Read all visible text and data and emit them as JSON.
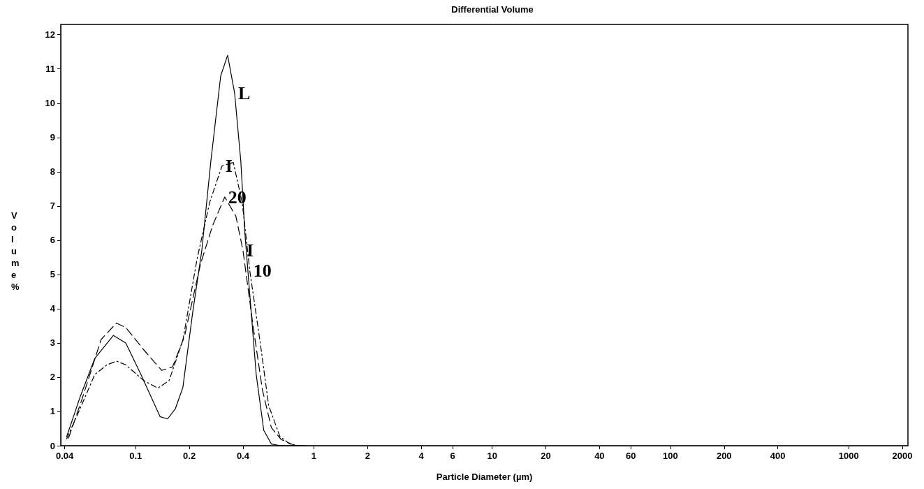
{
  "chart_data": {
    "type": "line",
    "title": "Differential Volume",
    "xlabel": "Particle Diameter (µm)",
    "ylabel": "Volume %",
    "log": "x",
    "grid": false,
    "marker": "none",
    "xlim": [
      0.038,
      2150
    ],
    "xticks": [
      0.04,
      0.1,
      0.2,
      0.4,
      1,
      2,
      4,
      6,
      10,
      20,
      40,
      60,
      100,
      200,
      400,
      1000,
      2000
    ],
    "ylim": [
      0,
      12.3
    ],
    "yticks": [
      0,
      1,
      2,
      3,
      4,
      5,
      6,
      7,
      8,
      9,
      10,
      11,
      12
    ],
    "series": [
      {
        "color": "#000000",
        "line_style": "solid",
        "x": [
          0.041,
          0.049,
          0.059,
          0.075,
          0.088,
          0.107,
          0.137,
          0.151,
          0.167,
          0.184,
          0.209,
          0.235,
          0.264,
          0.3,
          0.328,
          0.359,
          0.389,
          0.41,
          0.437,
          0.474,
          0.523,
          0.577,
          0.65,
          0.9
        ],
        "values": [
          0.26,
          1.45,
          2.55,
          3.22,
          3.0,
          2.08,
          0.85,
          0.78,
          1.08,
          1.7,
          3.9,
          5.7,
          8.3,
          10.8,
          11.4,
          10.3,
          8.3,
          6.2,
          4.4,
          2.1,
          0.45,
          0.05,
          0,
          0
        ]
      },
      {
        "color": "#000000",
        "line_style": "dashed",
        "x": [
          0.042,
          0.05,
          0.064,
          0.078,
          0.088,
          0.111,
          0.14,
          0.161,
          0.188,
          0.231,
          0.271,
          0.316,
          0.365,
          0.4,
          0.457,
          0.514,
          0.577,
          0.655,
          0.77,
          0.85
        ],
        "values": [
          0.22,
          1.36,
          3.1,
          3.58,
          3.45,
          2.8,
          2.2,
          2.3,
          3.2,
          5.3,
          6.45,
          7.26,
          6.7,
          5.7,
          3.45,
          1.63,
          0.53,
          0.18,
          0.02,
          0
        ]
      },
      {
        "color": "#000000",
        "line_style": "dotted",
        "x": [
          0.041,
          0.048,
          0.059,
          0.069,
          0.078,
          0.088,
          0.111,
          0.133,
          0.154,
          0.184,
          0.221,
          0.26,
          0.305,
          0.353,
          0.396,
          0.437,
          0.5,
          0.557,
          0.644,
          0.737,
          0.85
        ],
        "values": [
          0.2,
          1.0,
          2.08,
          2.36,
          2.47,
          2.36,
          1.9,
          1.68,
          1.9,
          3.08,
          5.45,
          7.1,
          8.17,
          8.27,
          7.1,
          5.1,
          3.0,
          1.18,
          0.27,
          0.04,
          0
        ]
      }
    ],
    "annotations": [
      {
        "text": "L",
        "x": 0.359,
        "y": 10.3
      },
      {
        "text": "I",
        "x": 0.305,
        "y": 8.17
      },
      {
        "text": "20",
        "x": 0.316,
        "y": 7.26
      },
      {
        "text": "I",
        "x": 0.4,
        "y": 5.7
      },
      {
        "text": "10",
        "x": 0.437,
        "y": 5.1
      }
    ]
  }
}
